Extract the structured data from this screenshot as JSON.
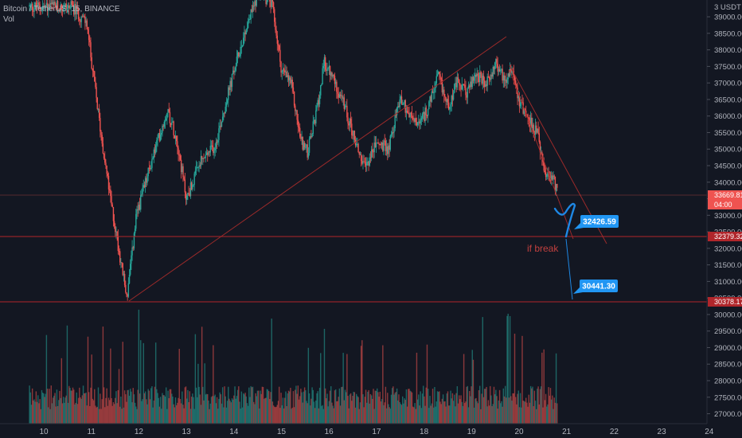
{
  "header": {
    "symbol_line": "Bitcoin / TetherUS, 15, BINANCE",
    "volume_label": "Vol"
  },
  "axis": {
    "unit_label": "USDT"
  },
  "colors": {
    "background": "#131722",
    "up": "#26a69a",
    "down": "#ef5350",
    "trendline": "#9b2a2a",
    "level_line": "#b0262b",
    "callout": "#2196f3",
    "drawing": "#1e88e5",
    "note": "#c2403f"
  },
  "chart_data": {
    "type": "candlestick",
    "symbol": "Bitcoin / TetherUS",
    "interval": "15",
    "exchange": "BINANCE",
    "ylim": [
      26700,
      39700
    ],
    "y_ticks": [
      27000,
      27500,
      28000,
      28500,
      29000,
      29500,
      30000,
      30500,
      31000,
      31500,
      32000,
      32500,
      33000,
      33500,
      34000,
      34500,
      35000,
      35500,
      36000,
      36500,
      37000,
      37500,
      38000,
      38500,
      39000
    ],
    "x_tick_labels": [
      "10",
      "11",
      "12",
      "13",
      "14",
      "15",
      "16",
      "17",
      "18",
      "19",
      "20",
      "21",
      "22",
      "23",
      "24"
    ],
    "price_path": {
      "days": [
        9.7,
        10.6,
        10.9,
        11.2,
        11.4,
        11.75,
        11.95,
        12.3,
        12.6,
        12.8,
        13.0,
        13.3,
        13.6,
        13.9,
        14.2,
        14.5,
        14.8,
        15.0,
        15.2,
        15.4,
        15.55,
        15.75,
        15.9,
        16.1,
        16.3,
        16.5,
        16.75,
        17.0,
        17.25,
        17.5,
        17.7,
        17.9,
        18.1,
        18.3,
        18.5,
        18.7,
        18.9,
        19.1,
        19.3,
        19.5,
        19.7,
        19.85,
        20.0,
        20.2,
        20.4,
        20.55,
        20.7,
        20.8
      ],
      "closes": [
        39300,
        39300,
        38800,
        35500,
        33500,
        30500,
        33000,
        34800,
        36200,
        35300,
        33500,
        34600,
        35100,
        36800,
        38400,
        39700,
        39400,
        37400,
        37000,
        35300,
        34900,
        36200,
        37600,
        37100,
        36400,
        35500,
        34400,
        35200,
        35000,
        36600,
        36000,
        35700,
        36300,
        37200,
        36300,
        37000,
        36700,
        37300,
        36900,
        37600,
        37100,
        37500,
        36500,
        35900,
        35400,
        34100,
        34200,
        33670
      ]
    },
    "current_price": "33669.81",
    "countdown": "04:00",
    "horizontal_levels": [
      "32379.32",
      "30378.17"
    ],
    "annotations": [
      "32426.59",
      "30441.30",
      "if break"
    ]
  }
}
